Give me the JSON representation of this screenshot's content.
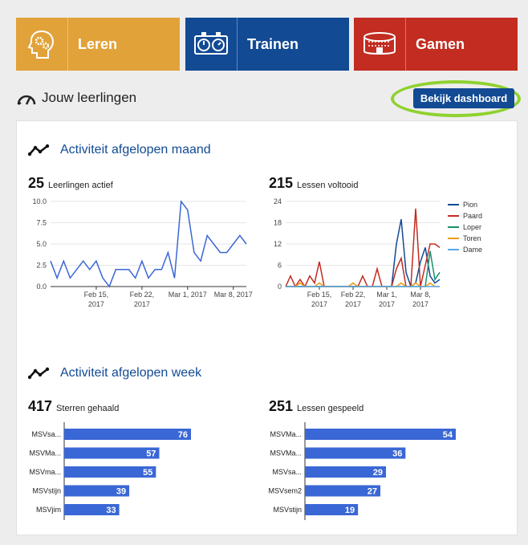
{
  "tiles": [
    {
      "label": "Leren",
      "icon": "brain-gears-icon",
      "color": "#e2a23a"
    },
    {
      "label": "Trainen",
      "icon": "training-board-icon",
      "color": "#124a94"
    },
    {
      "label": "Gamen",
      "icon": "stadium-icon",
      "color": "#c22c21"
    }
  ],
  "learners": {
    "title": "Jouw leerlingen",
    "dashboard_button": "Bekijk dashboard"
  },
  "month_section": {
    "title": "Activiteit afgelopen maand",
    "active": {
      "value": "25",
      "label": "Leerlingen actief"
    },
    "lessons": {
      "value": "215",
      "label": "Lessen voltooid"
    }
  },
  "week_section": {
    "title": "Activiteit afgelopen week",
    "stars": {
      "value": "417",
      "label": "Sterren gehaald"
    },
    "played": {
      "value": "251",
      "label": "Lessen gespeeld"
    }
  },
  "chart_data": [
    {
      "type": "line",
      "title": "",
      "ylim": [
        0,
        10
      ],
      "yticks": [
        "0.0",
        "2.5",
        "5.0",
        "7.5",
        "10.0"
      ],
      "xtick_labels": [
        [
          "Feb 15,",
          "2017"
        ],
        [
          "Feb 22,",
          "2017"
        ],
        [
          "Mar 1, 2017"
        ],
        [
          "Mar 8, 2017"
        ]
      ],
      "xtick_positions": [
        7,
        14,
        21,
        28
      ],
      "series": [
        {
          "color": "#3a67d6",
          "values": [
            3,
            1,
            3,
            1,
            2,
            3,
            2,
            3,
            1,
            0,
            2,
            2,
            2,
            1,
            3,
            1,
            2,
            2,
            4,
            1,
            10,
            9,
            4,
            3,
            6,
            5,
            4,
            4,
            5,
            6,
            5
          ]
        }
      ]
    },
    {
      "type": "line",
      "ylim": [
        0,
        24
      ],
      "yticks": [
        "0",
        "6",
        "12",
        "18",
        "24"
      ],
      "xtick_labels": [
        [
          "Feb 15,",
          "2017"
        ],
        [
          "Feb 22,",
          "2017"
        ],
        [
          "Mar 1,",
          "2017"
        ],
        [
          "Mar 8,",
          "2017"
        ]
      ],
      "xtick_positions": [
        7,
        14,
        21,
        28
      ],
      "series": [
        {
          "name": "Pion",
          "color": "#124a94",
          "values": [
            0,
            0,
            0,
            0,
            0,
            0,
            0,
            0,
            0,
            0,
            0,
            0,
            0,
            0,
            0,
            0,
            0,
            0,
            0,
            0,
            0,
            0,
            0,
            12,
            19,
            4,
            0,
            1,
            7,
            11,
            3,
            1,
            2
          ]
        },
        {
          "name": "Paard",
          "color": "#c22c21",
          "values": [
            0,
            3,
            0,
            2,
            0,
            3,
            1,
            7,
            0,
            0,
            0,
            0,
            0,
            0,
            0,
            0,
            3,
            0,
            0,
            5,
            0,
            0,
            0,
            5,
            8,
            0,
            0,
            22,
            0,
            6,
            12,
            12,
            11
          ]
        },
        {
          "name": "Loper",
          "color": "#1b8f6a",
          "values": [
            0,
            0,
            0,
            0,
            0,
            0,
            0,
            0,
            0,
            0,
            0,
            0,
            0,
            0,
            0,
            0,
            0,
            0,
            0,
            0,
            0,
            0,
            0,
            0,
            0,
            0,
            0,
            0,
            0,
            0,
            10,
            2,
            4
          ]
        },
        {
          "name": "Toren",
          "color": "#f09a1a",
          "values": [
            0,
            0,
            0,
            1,
            0,
            0,
            0,
            1,
            0,
            0,
            0,
            0,
            0,
            0,
            1,
            0,
            0,
            0,
            0,
            0,
            0,
            0,
            0,
            0,
            1,
            0,
            0,
            1,
            0,
            0,
            1,
            0,
            0
          ]
        },
        {
          "name": "Dame",
          "color": "#5aa7e8",
          "values": [
            0,
            0,
            0,
            0,
            0,
            0,
            0,
            0,
            0,
            0,
            0,
            0,
            0,
            0,
            0,
            0,
            0,
            0,
            0,
            0,
            0,
            0,
            0,
            0,
            0,
            0,
            0,
            0,
            0,
            0,
            0,
            0,
            0
          ]
        }
      ]
    },
    {
      "type": "bar",
      "orientation": "horizontal",
      "categories": [
        "MSVsa...",
        "MSVMa...",
        "MSVma...",
        "MSVstijn",
        "MSVjim"
      ],
      "values": [
        76,
        57,
        55,
        39,
        33
      ],
      "color": "#3a67d6"
    },
    {
      "type": "bar",
      "orientation": "horizontal",
      "categories": [
        "MSVMa...",
        "MSVMa...",
        "MSVsa...",
        "MSVsem2",
        "MSVstijn"
      ],
      "values": [
        54,
        36,
        29,
        27,
        19
      ],
      "color": "#3a67d6"
    }
  ]
}
